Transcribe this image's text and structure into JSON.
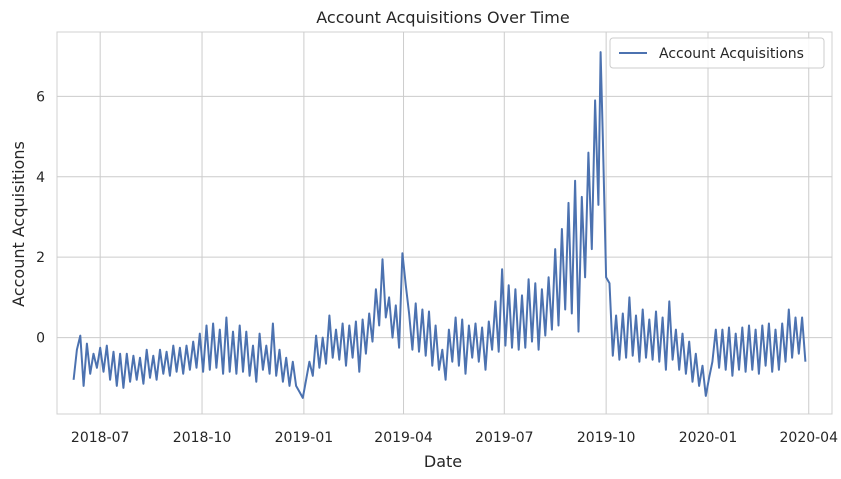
{
  "chart_data": {
    "type": "line",
    "title": "Account Acquisitions Over Time",
    "xlabel": "Date",
    "ylabel": "Account Acquisitions",
    "x_range": [
      "2018-05-23",
      "2020-04-22"
    ],
    "ylim": [
      -1.9,
      7.6
    ],
    "x_ticks": [
      "2018-07",
      "2018-10",
      "2019-01",
      "2019-04",
      "2019-07",
      "2019-10",
      "2020-01",
      "2020-04"
    ],
    "y_ticks": [
      0,
      2,
      4,
      6
    ],
    "grid": true,
    "legend_position": "top-right",
    "series": [
      {
        "name": "Account Acquisitions",
        "color": "#4c72b0",
        "points": [
          [
            "2018-06-07",
            -1.05
          ],
          [
            "2018-06-10",
            -0.3
          ],
          [
            "2018-06-13",
            0.05
          ],
          [
            "2018-06-16",
            -1.2
          ],
          [
            "2018-06-19",
            -0.15
          ],
          [
            "2018-06-22",
            -0.9
          ],
          [
            "2018-06-25",
            -0.4
          ],
          [
            "2018-06-28",
            -0.75
          ],
          [
            "2018-07-01",
            -0.25
          ],
          [
            "2018-07-04",
            -0.85
          ],
          [
            "2018-07-07",
            -0.2
          ],
          [
            "2018-07-10",
            -1.05
          ],
          [
            "2018-07-13",
            -0.35
          ],
          [
            "2018-07-16",
            -1.2
          ],
          [
            "2018-07-19",
            -0.4
          ],
          [
            "2018-07-22",
            -1.25
          ],
          [
            "2018-07-25",
            -0.4
          ],
          [
            "2018-07-28",
            -1.1
          ],
          [
            "2018-07-31",
            -0.45
          ],
          [
            "2018-08-03",
            -1.05
          ],
          [
            "2018-08-06",
            -0.5
          ],
          [
            "2018-08-09",
            -1.15
          ],
          [
            "2018-08-12",
            -0.3
          ],
          [
            "2018-08-15",
            -1.0
          ],
          [
            "2018-08-18",
            -0.45
          ],
          [
            "2018-08-21",
            -1.05
          ],
          [
            "2018-08-24",
            -0.3
          ],
          [
            "2018-08-27",
            -0.9
          ],
          [
            "2018-08-30",
            -0.35
          ],
          [
            "2018-09-02",
            -0.95
          ],
          [
            "2018-09-05",
            -0.2
          ],
          [
            "2018-09-08",
            -0.85
          ],
          [
            "2018-09-11",
            -0.25
          ],
          [
            "2018-09-14",
            -0.9
          ],
          [
            "2018-09-17",
            -0.2
          ],
          [
            "2018-09-20",
            -0.8
          ],
          [
            "2018-09-23",
            -0.1
          ],
          [
            "2018-09-26",
            -0.75
          ],
          [
            "2018-09-29",
            0.1
          ],
          [
            "2018-10-02",
            -0.85
          ],
          [
            "2018-10-05",
            0.3
          ],
          [
            "2018-10-08",
            -0.8
          ],
          [
            "2018-10-11",
            0.35
          ],
          [
            "2018-10-14",
            -0.75
          ],
          [
            "2018-10-17",
            0.2
          ],
          [
            "2018-10-20",
            -0.9
          ],
          [
            "2018-10-23",
            0.5
          ],
          [
            "2018-10-26",
            -0.85
          ],
          [
            "2018-10-29",
            0.15
          ],
          [
            "2018-11-01",
            -0.9
          ],
          [
            "2018-11-04",
            0.3
          ],
          [
            "2018-11-07",
            -0.85
          ],
          [
            "2018-11-10",
            0.15
          ],
          [
            "2018-11-13",
            -0.95
          ],
          [
            "2018-11-16",
            -0.2
          ],
          [
            "2018-11-19",
            -1.1
          ],
          [
            "2018-11-22",
            0.1
          ],
          [
            "2018-11-25",
            -0.8
          ],
          [
            "2018-11-28",
            -0.2
          ],
          [
            "2018-12-01",
            -0.9
          ],
          [
            "2018-12-04",
            0.35
          ],
          [
            "2018-12-07",
            -0.95
          ],
          [
            "2018-12-10",
            -0.3
          ],
          [
            "2018-12-13",
            -1.1
          ],
          [
            "2018-12-16",
            -0.5
          ],
          [
            "2018-12-19",
            -1.2
          ],
          [
            "2018-12-22",
            -0.6
          ],
          [
            "2018-12-25",
            -1.2
          ],
          [
            "2018-12-28",
            -1.35
          ],
          [
            "2018-12-31",
            -1.5
          ],
          [
            "2019-01-03",
            -1.05
          ],
          [
            "2019-01-06",
            -0.6
          ],
          [
            "2019-01-09",
            -0.95
          ],
          [
            "2019-01-12",
            0.05
          ],
          [
            "2019-01-15",
            -0.75
          ],
          [
            "2019-01-18",
            0.0
          ],
          [
            "2019-01-21",
            -0.65
          ],
          [
            "2019-01-24",
            0.55
          ],
          [
            "2019-01-27",
            -0.5
          ],
          [
            "2019-01-30",
            0.2
          ],
          [
            "2019-02-02",
            -0.55
          ],
          [
            "2019-02-05",
            0.35
          ],
          [
            "2019-02-08",
            -0.7
          ],
          [
            "2019-02-11",
            0.3
          ],
          [
            "2019-02-14",
            -0.5
          ],
          [
            "2019-02-17",
            0.4
          ],
          [
            "2019-02-20",
            -0.85
          ],
          [
            "2019-02-23",
            0.45
          ],
          [
            "2019-02-26",
            -0.4
          ],
          [
            "2019-03-01",
            0.6
          ],
          [
            "2019-03-04",
            -0.1
          ],
          [
            "2019-03-07",
            1.2
          ],
          [
            "2019-03-10",
            0.3
          ],
          [
            "2019-03-13",
            1.95
          ],
          [
            "2019-03-16",
            0.5
          ],
          [
            "2019-03-19",
            1.0
          ],
          [
            "2019-03-22",
            0.0
          ],
          [
            "2019-03-25",
            0.8
          ],
          [
            "2019-03-28",
            -0.25
          ],
          [
            "2019-03-31",
            2.1
          ],
          [
            "2019-04-03",
            1.3
          ],
          [
            "2019-04-06",
            0.6
          ],
          [
            "2019-04-09",
            -0.3
          ],
          [
            "2019-04-12",
            0.85
          ],
          [
            "2019-04-15",
            -0.35
          ],
          [
            "2019-04-18",
            0.7
          ],
          [
            "2019-04-21",
            -0.45
          ],
          [
            "2019-04-24",
            0.65
          ],
          [
            "2019-04-27",
            -0.7
          ],
          [
            "2019-04-30",
            0.3
          ],
          [
            "2019-05-03",
            -0.8
          ],
          [
            "2019-05-06",
            -0.3
          ],
          [
            "2019-05-09",
            -1.05
          ],
          [
            "2019-05-12",
            0.2
          ],
          [
            "2019-05-15",
            -0.6
          ],
          [
            "2019-05-18",
            0.5
          ],
          [
            "2019-05-21",
            -0.7
          ],
          [
            "2019-05-24",
            0.45
          ],
          [
            "2019-05-27",
            -0.9
          ],
          [
            "2019-05-30",
            0.3
          ],
          [
            "2019-06-02",
            -0.5
          ],
          [
            "2019-06-05",
            0.35
          ],
          [
            "2019-06-08",
            -0.6
          ],
          [
            "2019-06-11",
            0.25
          ],
          [
            "2019-06-14",
            -0.8
          ],
          [
            "2019-06-17",
            0.4
          ],
          [
            "2019-06-20",
            -0.3
          ],
          [
            "2019-06-23",
            0.9
          ],
          [
            "2019-06-26",
            -0.35
          ],
          [
            "2019-06-29",
            1.7
          ],
          [
            "2019-07-02",
            -0.2
          ],
          [
            "2019-07-05",
            1.3
          ],
          [
            "2019-07-08",
            -0.25
          ],
          [
            "2019-07-11",
            1.2
          ],
          [
            "2019-07-14",
            -0.3
          ],
          [
            "2019-07-17",
            1.05
          ],
          [
            "2019-07-20",
            -0.25
          ],
          [
            "2019-07-23",
            1.45
          ],
          [
            "2019-07-26",
            -0.1
          ],
          [
            "2019-07-29",
            1.35
          ],
          [
            "2019-08-01",
            -0.3
          ],
          [
            "2019-08-04",
            1.2
          ],
          [
            "2019-08-07",
            0.05
          ],
          [
            "2019-08-10",
            1.5
          ],
          [
            "2019-08-13",
            0.2
          ],
          [
            "2019-08-16",
            2.2
          ],
          [
            "2019-08-19",
            0.3
          ],
          [
            "2019-08-22",
            2.7
          ],
          [
            "2019-08-25",
            0.7
          ],
          [
            "2019-08-28",
            3.35
          ],
          [
            "2019-08-31",
            0.6
          ],
          [
            "2019-09-03",
            3.9
          ],
          [
            "2019-09-06",
            0.15
          ],
          [
            "2019-09-09",
            3.5
          ],
          [
            "2019-09-12",
            1.5
          ],
          [
            "2019-09-15",
            4.6
          ],
          [
            "2019-09-18",
            2.2
          ],
          [
            "2019-09-21",
            5.9
          ],
          [
            "2019-09-24",
            3.3
          ],
          [
            "2019-09-26",
            7.1
          ],
          [
            "2019-09-28",
            5.0
          ],
          [
            "2019-10-01",
            1.5
          ],
          [
            "2019-10-04",
            1.35
          ],
          [
            "2019-10-07",
            -0.45
          ],
          [
            "2019-10-10",
            0.55
          ],
          [
            "2019-10-13",
            -0.55
          ],
          [
            "2019-10-16",
            0.6
          ],
          [
            "2019-10-19",
            -0.5
          ],
          [
            "2019-10-22",
            1.0
          ],
          [
            "2019-10-25",
            -0.45
          ],
          [
            "2019-10-28",
            0.55
          ],
          [
            "2019-10-31",
            -0.6
          ],
          [
            "2019-11-03",
            0.7
          ],
          [
            "2019-11-06",
            -0.5
          ],
          [
            "2019-11-09",
            0.45
          ],
          [
            "2019-11-12",
            -0.55
          ],
          [
            "2019-11-15",
            0.65
          ],
          [
            "2019-11-18",
            -0.6
          ],
          [
            "2019-11-21",
            0.5
          ],
          [
            "2019-11-24",
            -0.8
          ],
          [
            "2019-11-27",
            0.9
          ],
          [
            "2019-11-30",
            -0.55
          ],
          [
            "2019-12-03",
            0.2
          ],
          [
            "2019-12-06",
            -0.8
          ],
          [
            "2019-12-09",
            0.1
          ],
          [
            "2019-12-12",
            -0.9
          ],
          [
            "2019-12-15",
            -0.1
          ],
          [
            "2019-12-18",
            -1.1
          ],
          [
            "2019-12-21",
            -0.4
          ],
          [
            "2019-12-24",
            -1.2
          ],
          [
            "2019-12-27",
            -0.7
          ],
          [
            "2019-12-30",
            -1.45
          ],
          [
            "2020-01-02",
            -1.0
          ],
          [
            "2020-01-05",
            -0.6
          ],
          [
            "2020-01-08",
            0.2
          ],
          [
            "2020-01-11",
            -0.75
          ],
          [
            "2020-01-14",
            0.2
          ],
          [
            "2020-01-17",
            -0.8
          ],
          [
            "2020-01-20",
            0.25
          ],
          [
            "2020-01-23",
            -0.95
          ],
          [
            "2020-01-26",
            0.1
          ],
          [
            "2020-01-29",
            -0.8
          ],
          [
            "2020-02-01",
            0.25
          ],
          [
            "2020-02-04",
            -0.85
          ],
          [
            "2020-02-07",
            0.3
          ],
          [
            "2020-02-10",
            -0.8
          ],
          [
            "2020-02-13",
            0.2
          ],
          [
            "2020-02-16",
            -0.9
          ],
          [
            "2020-02-19",
            0.3
          ],
          [
            "2020-02-22",
            -0.7
          ],
          [
            "2020-02-25",
            0.35
          ],
          [
            "2020-02-28",
            -0.85
          ],
          [
            "2020-03-02",
            0.2
          ],
          [
            "2020-03-05",
            -0.8
          ],
          [
            "2020-03-08",
            0.35
          ],
          [
            "2020-03-11",
            -0.6
          ],
          [
            "2020-03-14",
            0.7
          ],
          [
            "2020-03-17",
            -0.5
          ],
          [
            "2020-03-20",
            0.5
          ],
          [
            "2020-03-23",
            -0.4
          ],
          [
            "2020-03-26",
            0.5
          ],
          [
            "2020-03-29",
            -0.6
          ]
        ]
      }
    ]
  }
}
